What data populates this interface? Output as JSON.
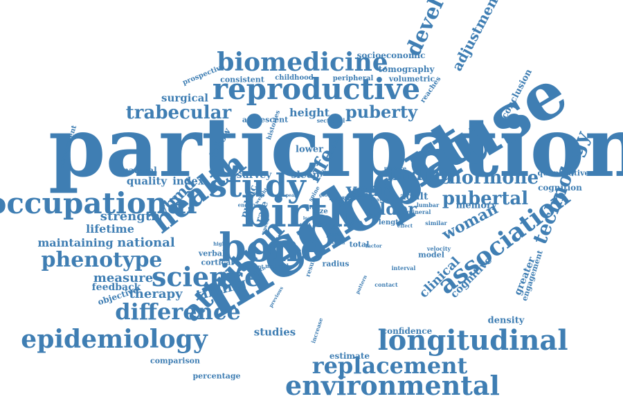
{
  "color": "#3f7eb3",
  "words": {
    "participation": "participation",
    "menopause": "menopause",
    "cohort": "cohort",
    "birth": "birth",
    "bone": "bone",
    "study": "study",
    "health": "health",
    "reproductive": "reproductive",
    "biomedicine": "biomedicine",
    "occupational": "occupational",
    "longitudinal": "longitudinal",
    "environmental": "environmental",
    "replacement": "replacement",
    "epidemiology": "epidemiology",
    "attrition": "attrition",
    "science": "science",
    "association": "association",
    "development": "development",
    "technology": "technology",
    "difference": "difference",
    "phenotype": "phenotype",
    "trabecular": "trabecular",
    "puberty": "puberty",
    "finding": "finding",
    "hormone": "hormone",
    "pubertal": "pubertal",
    "year": "year",
    "life": "life",
    "older": "older",
    "woman": "woman",
    "adjustment": "adjustment",
    "vbmd": "vbmd",
    "strength": "strength",
    "lifetime": "lifetime",
    "national": "national",
    "maintaining": "maintaining",
    "measure": "measure",
    "feedback": "feedback",
    "therapy": "therapy",
    "timing": "timing",
    "objective": "objective",
    "studies": "studies",
    "comparison": "comparison",
    "percentage": "percentage",
    "estimate": "estimate",
    "confidence": "confidence",
    "clinical": "clinical",
    "cognitive": "cognitive",
    "greater": "greater",
    "density": "density",
    "engagement": "engagement",
    "conclusion": "conclusion",
    "reaches": "reaches",
    "quantitative": "quantitative",
    "cognition": "cognition",
    "memory": "memory",
    "adult": "adult",
    "socioeconomic": "socioeconomic",
    "tomography": "tomography",
    "peripheral": "peripheral",
    "volumetric": "volumetric",
    "childhood": "childhood",
    "consistent": "consistent",
    "prospective": "prospective",
    "surgical": "surgical",
    "height": "height",
    "adolescent": "adolescent",
    "lower": "lower",
    "survey": "survey",
    "sleep": "sleep",
    "natural": "natural",
    "quality": "quality",
    "index": "index",
    "follow": "follow",
    "assessment": "assessment",
    "histories": "histories",
    "sectional": "sectional",
    "smoking": "smoking",
    "mature": "mature",
    "design": "design",
    "spine": "spine",
    "status": "status",
    "public": "public",
    "rate": "rate",
    "size": "size",
    "age": "age",
    "pqct": "pqct",
    "length": "length",
    "effect": "effect",
    "similar": "similar",
    "velocity": "velocity",
    "total": "total",
    "factor": "factor",
    "term": "term",
    "model": "model",
    "interval": "interval",
    "contact": "contact",
    "radius": "radius",
    "result": "result",
    "method": "method",
    "current": "current",
    "cortical": "cortical",
    "verbal": "verbal",
    "higher": "higher",
    "growth": "growth",
    "previous": "previous",
    "increase": "increase",
    "pattern": "pattern",
    "speed": "speed",
    "energy": "energy",
    "weight": "weight",
    "mineral": "mineral",
    "lumbar": "lumbar",
    "polar": "polar",
    "ability": "ability",
    "cross": "cross",
    "level": "level",
    "peak": "peak",
    "good": "good",
    "board": "board",
    "gender": "gender",
    "find": "find",
    "load": "load",
    "bmd": "bmd",
    "arm": "arm",
    "bio": "bio"
  }
}
